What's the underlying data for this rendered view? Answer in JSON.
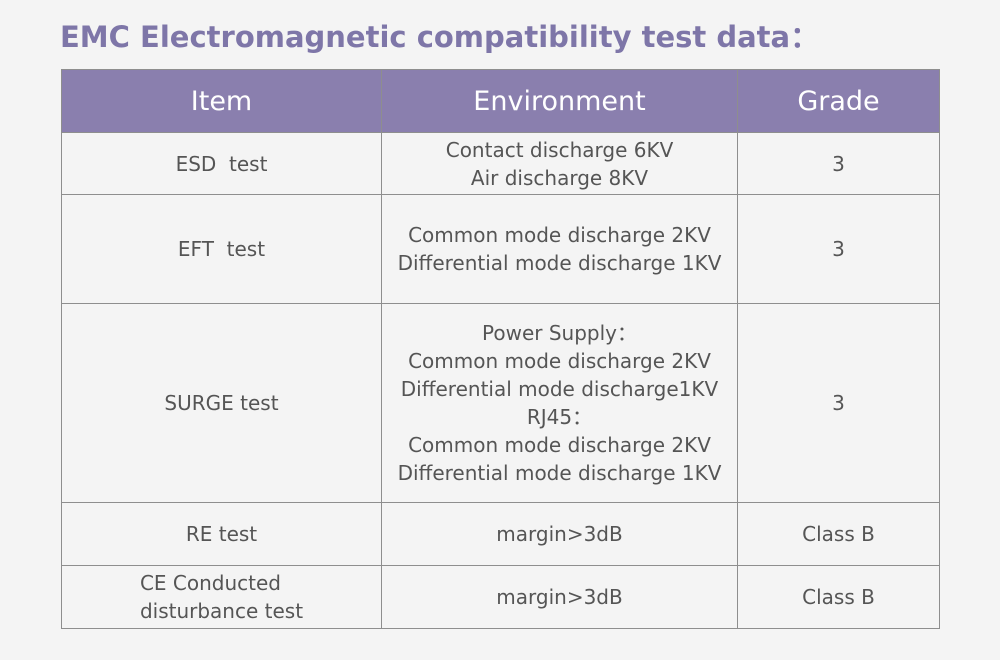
{
  "title": "EMC Electromagnetic compatibility test data：",
  "table": {
    "header": [
      "Item",
      "Environment",
      "Grade"
    ],
    "rows": [
      [
        [
          "ESD  test"
        ],
        [
          "Contact discharge 6KV",
          "Air discharge 8KV"
        ],
        [
          "3"
        ]
      ],
      [
        [
          "EFT  test"
        ],
        [
          "Common mode discharge 2KV",
          "Differential mode discharge 1KV"
        ],
        [
          "3"
        ]
      ],
      [
        [
          "SURGE test"
        ],
        [
          "Power Supply：",
          "Common mode discharge 2KV",
          "Differential mode discharge1KV",
          "RJ45：",
          "Common mode discharge 2KV",
          "Differential mode discharge 1KV"
        ],
        [
          "3"
        ]
      ],
      [
        [
          "RE test"
        ],
        [
          "margin>3dB"
        ],
        [
          "Class B"
        ]
      ],
      [
        [
          "CE Conducted",
          "disturbance test"
        ],
        [
          "margin>3dB"
        ],
        [
          "Class B"
        ]
      ]
    ]
  }
}
